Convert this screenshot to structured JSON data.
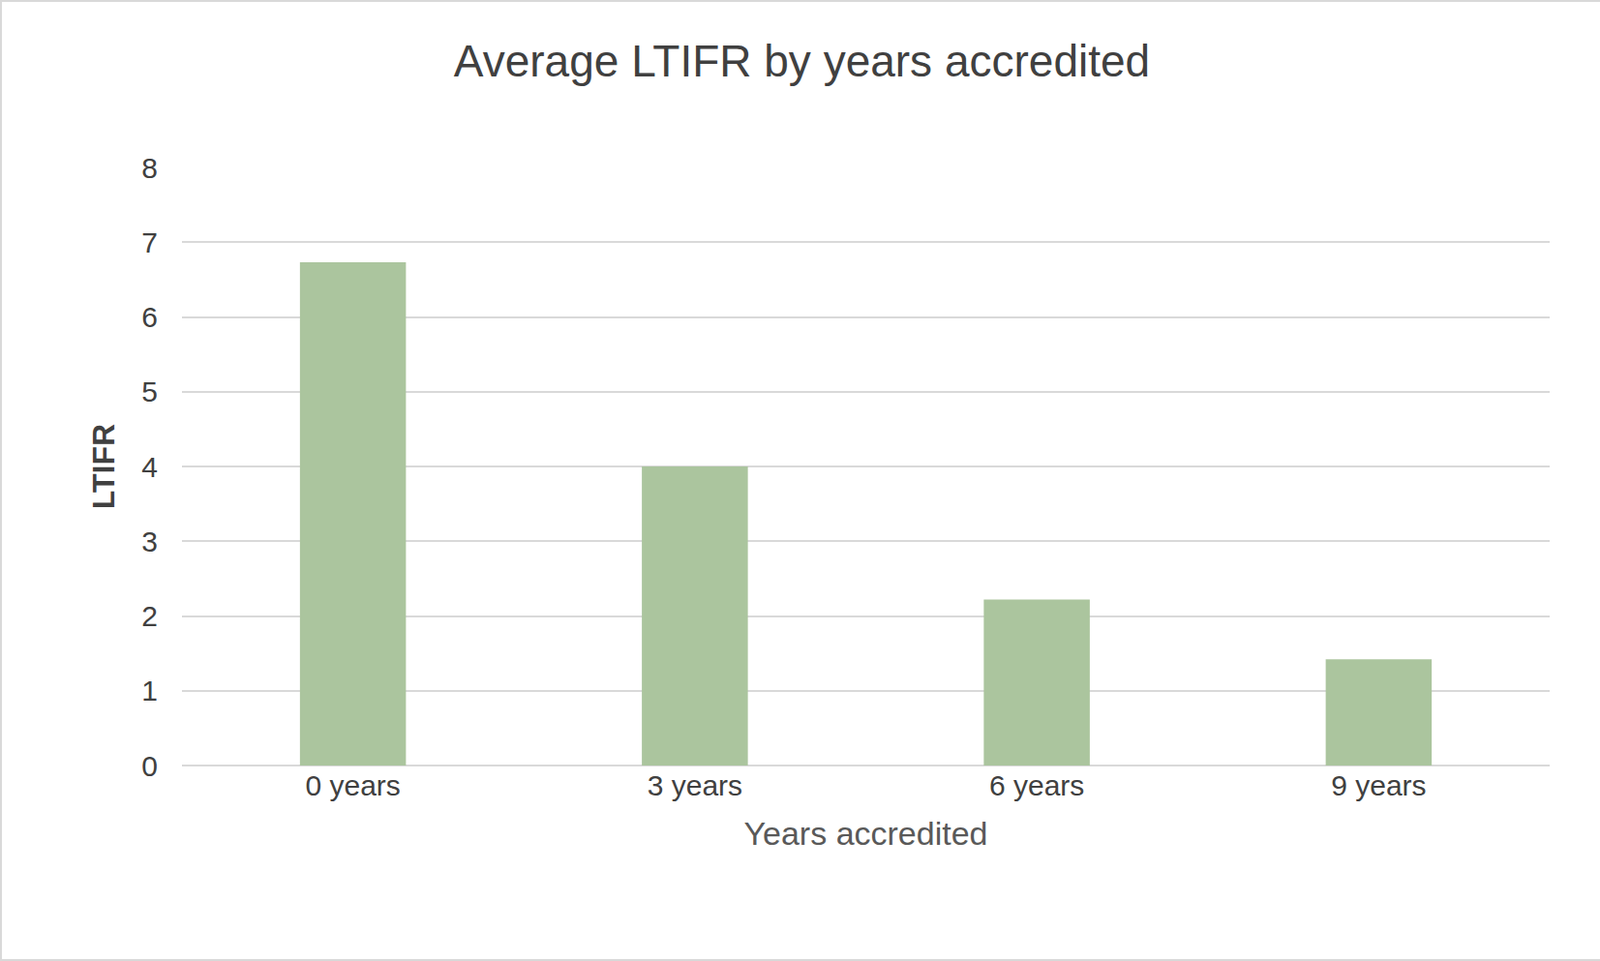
{
  "chart_data": {
    "type": "bar",
    "title": "Average LTIFR by years accredited",
    "x_label": "Years accredited",
    "y_label": "LTIFR",
    "categories": [
      "0 years",
      "3 years",
      "6 years",
      "9 years"
    ],
    "values": [
      6.73,
      4.0,
      2.22,
      1.42
    ],
    "color": "#abc59e",
    "ylim": [
      0,
      8
    ],
    "yticks": [
      0,
      1,
      2,
      3,
      4,
      5,
      6,
      7,
      8
    ],
    "grid": true
  }
}
